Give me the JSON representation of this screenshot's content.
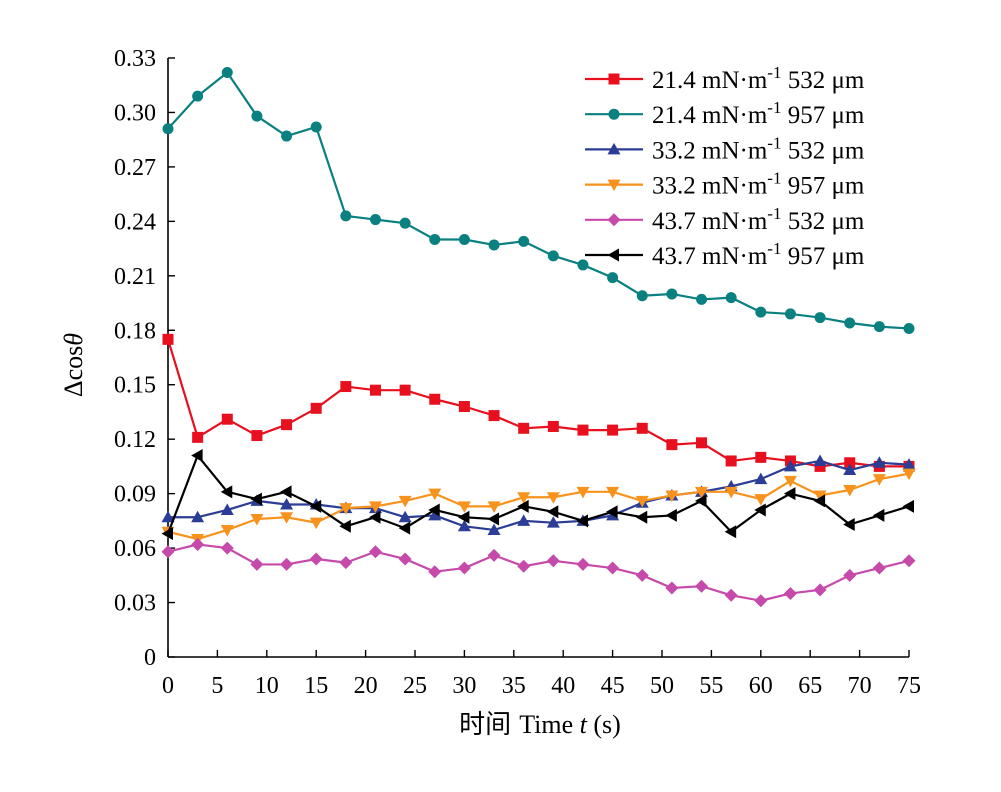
{
  "chart_data": {
    "type": "line",
    "title": "",
    "xlabel": "时间 Time t (s)",
    "xlabel_parts": {
      "cn": "时间",
      "pre": "Time ",
      "var": "t",
      "post": " (s)"
    },
    "ylabel": "Δcosθ",
    "ylabel_parts": {
      "pre": "Δcos",
      "var": "θ"
    },
    "xlim": [
      0,
      75
    ],
    "ylim": [
      0,
      0.33
    ],
    "x_ticks": [
      "0",
      "5",
      "10",
      "15",
      "20",
      "25",
      "30",
      "35",
      "40",
      "45",
      "50",
      "55",
      "60",
      "65",
      "70",
      "75"
    ],
    "y_ticks": [
      "0",
      "0.03",
      "0.06",
      "0.09",
      "0.12",
      "0.15",
      "0.18",
      "0.21",
      "0.24",
      "0.27",
      "0.30",
      "0.33"
    ],
    "grid": false,
    "legend_position": "top-right",
    "x": [
      0,
      3,
      6,
      9,
      12,
      15,
      18,
      21,
      24,
      27,
      30,
      33,
      36,
      39,
      42,
      45,
      48,
      51,
      54,
      57,
      60,
      63,
      66,
      69,
      72,
      75
    ],
    "series": [
      {
        "name": "21.4 mN·m-1 532 μm",
        "label_parts": [
          "21.4 mN·m",
          "-1",
          " 532 μm"
        ],
        "color": "#e8101e",
        "marker": "square",
        "values": [
          0.175,
          0.121,
          0.131,
          0.122,
          0.128,
          0.137,
          0.149,
          0.147,
          0.147,
          0.142,
          0.138,
          0.133,
          0.126,
          0.127,
          0.125,
          0.125,
          0.126,
          0.117,
          0.118,
          0.108,
          0.11,
          0.108,
          0.105,
          0.107,
          0.105,
          0.105
        ]
      },
      {
        "name": "21.4 mN·m-1 957 μm",
        "label_parts": [
          "21.4 mN·m",
          "-1",
          " 957 μm"
        ],
        "color": "#0a8080",
        "marker": "circle",
        "values": [
          0.291,
          0.309,
          0.322,
          0.298,
          0.287,
          0.292,
          0.243,
          0.241,
          0.239,
          0.23,
          0.23,
          0.227,
          0.229,
          0.221,
          0.216,
          0.209,
          0.199,
          0.2,
          0.197,
          0.198,
          0.19,
          0.189,
          0.187,
          0.184,
          0.182,
          0.181
        ]
      },
      {
        "name": "33.2 mN·m-1 532 μm",
        "label_parts": [
          "33.2 mN·m",
          "-1",
          " 532 μm"
        ],
        "color": "#2b3d94",
        "marker": "triangle-up",
        "values": [
          0.077,
          0.077,
          0.081,
          0.086,
          0.084,
          0.084,
          0.082,
          0.082,
          0.077,
          0.078,
          0.072,
          0.07,
          0.075,
          0.074,
          0.075,
          0.078,
          0.085,
          0.089,
          0.091,
          0.094,
          0.098,
          0.105,
          0.108,
          0.103,
          0.107,
          0.106
        ]
      },
      {
        "name": "33.2 mN·m-1 957 μm",
        "label_parts": [
          "33.2 mN·m",
          "-1",
          " 957 μm"
        ],
        "color": "#f7931d",
        "marker": "triangle-down",
        "values": [
          0.069,
          0.065,
          0.07,
          0.076,
          0.077,
          0.074,
          0.082,
          0.083,
          0.086,
          0.09,
          0.083,
          0.083,
          0.088,
          0.088,
          0.091,
          0.091,
          0.086,
          0.089,
          0.091,
          0.091,
          0.087,
          0.097,
          0.089,
          0.092,
          0.098,
          0.101
        ]
      },
      {
        "name": "43.7 mN·m-1 532 μm",
        "label_parts": [
          "43.7 mN·m",
          "-1",
          " 532 μm"
        ],
        "color": "#c54aaa",
        "marker": "diamond",
        "values": [
          0.058,
          0.062,
          0.06,
          0.051,
          0.051,
          0.054,
          0.052,
          0.058,
          0.054,
          0.047,
          0.049,
          0.056,
          0.05,
          0.053,
          0.051,
          0.049,
          0.045,
          0.038,
          0.039,
          0.034,
          0.031,
          0.035,
          0.037,
          0.045,
          0.049,
          0.053
        ]
      },
      {
        "name": "43.7 mN·m-1 957 μm",
        "label_parts": [
          "43.7 mN·m",
          "-1",
          " 957 μm"
        ],
        "color": "#000000",
        "marker": "triangle-left",
        "values": [
          0.068,
          0.111,
          0.091,
          0.087,
          0.091,
          0.083,
          0.072,
          0.077,
          0.071,
          0.081,
          0.077,
          0.076,
          0.083,
          0.08,
          0.075,
          0.08,
          0.077,
          0.078,
          0.086,
          0.069,
          0.081,
          0.09,
          0.086,
          0.073,
          0.078,
          0.083
        ]
      }
    ]
  }
}
